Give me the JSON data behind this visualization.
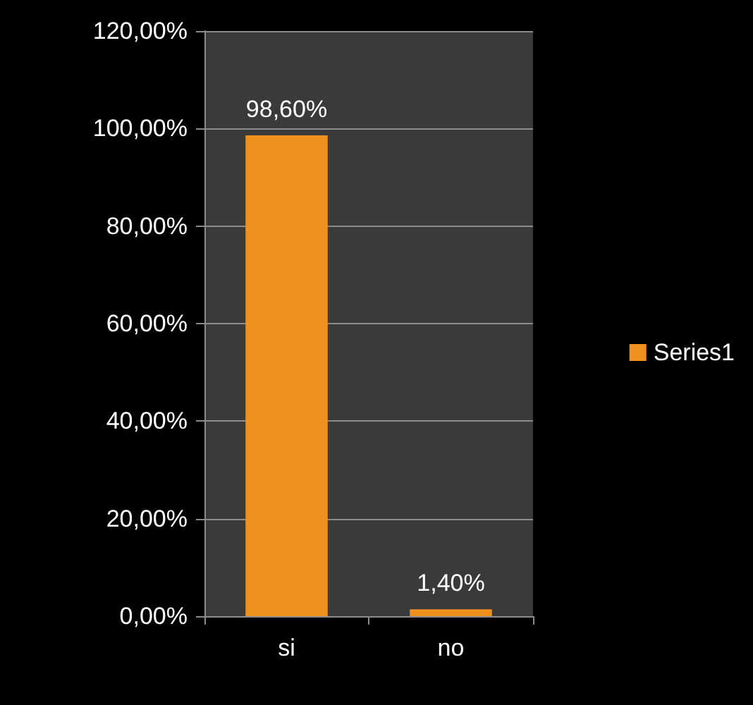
{
  "chart_data": {
    "type": "bar",
    "categories": [
      "si",
      "no"
    ],
    "series": [
      {
        "name": "Series1",
        "color": "#f0901e",
        "values": [
          98.6,
          1.4
        ],
        "value_labels": [
          "98,60%",
          "1,40%"
        ]
      }
    ],
    "ylim": [
      0,
      120
    ],
    "yticks": [
      {
        "value": 0,
        "label": "0,00%"
      },
      {
        "value": 20,
        "label": "20,00%"
      },
      {
        "value": 40,
        "label": "40,00%"
      },
      {
        "value": 60,
        "label": "60,00%"
      },
      {
        "value": 80,
        "label": "80,00%"
      },
      {
        "value": 100,
        "label": "100,00%"
      },
      {
        "value": 120,
        "label": "120,00%"
      }
    ],
    "grid": "y",
    "legend": "right"
  }
}
